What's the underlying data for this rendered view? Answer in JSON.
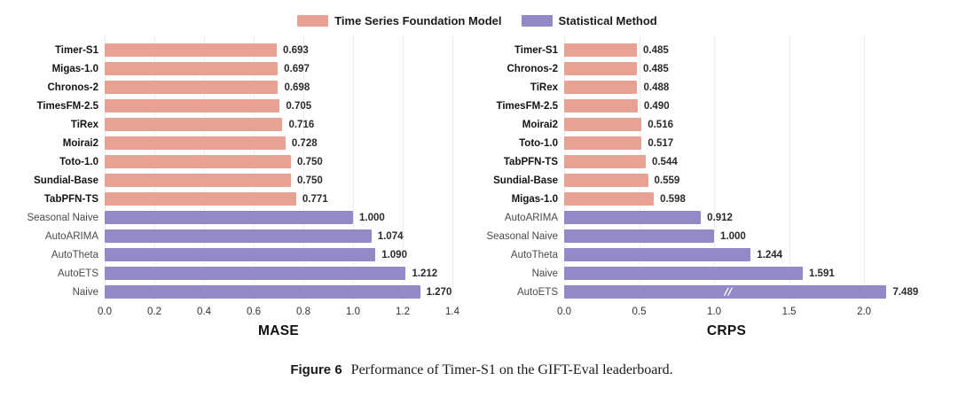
{
  "legend": [
    {
      "label": "Time Series Foundation Model",
      "series": "foundation",
      "color": "#E8A294"
    },
    {
      "label": "Statistical Method",
      "series": "statistical",
      "color": "#918AC6"
    }
  ],
  "colors": {
    "foundation": "#E8A294",
    "statistical": "#918AC6",
    "grid": "#EDEDED",
    "value_label": "#2B2B2B"
  },
  "caption": {
    "label": "Figure 6",
    "text": "Performance of Timer-S1 on the GIFT-Eval leaderboard."
  },
  "chart_data": [
    {
      "type": "bar",
      "orientation": "horizontal",
      "title": "",
      "xlabel": "MASE",
      "ylabel": "",
      "xlim": [
        0,
        1.4
      ],
      "grid": true,
      "legend_position": "top",
      "xticks": [
        {
          "value": 0.0,
          "label": "0.0"
        },
        {
          "value": 0.2,
          "label": "0.2"
        },
        {
          "value": 0.4,
          "label": "0.4"
        },
        {
          "value": 0.6,
          "label": "0.6"
        },
        {
          "value": 0.8,
          "label": "0.8"
        },
        {
          "value": 1.0,
          "label": "1.0"
        },
        {
          "value": 1.2,
          "label": "1.2"
        },
        {
          "value": 1.4,
          "label": "1.4"
        }
      ],
      "bars": [
        {
          "label": "Timer-S1",
          "value": 0.693,
          "value_label": "0.693",
          "series": "foundation"
        },
        {
          "label": "Migas-1.0",
          "value": 0.697,
          "value_label": "0.697",
          "series": "foundation"
        },
        {
          "label": "Chronos-2",
          "value": 0.698,
          "value_label": "0.698",
          "series": "foundation"
        },
        {
          "label": "TimesFM-2.5",
          "value": 0.705,
          "value_label": "0.705",
          "series": "foundation"
        },
        {
          "label": "TiRex",
          "value": 0.716,
          "value_label": "0.716",
          "series": "foundation"
        },
        {
          "label": "Moirai2",
          "value": 0.728,
          "value_label": "0.728",
          "series": "foundation"
        },
        {
          "label": "Toto-1.0",
          "value": 0.75,
          "value_label": "0.750",
          "series": "foundation"
        },
        {
          "label": "Sundial-Base",
          "value": 0.75,
          "value_label": "0.750",
          "series": "foundation"
        },
        {
          "label": "TabPFN-TS",
          "value": 0.771,
          "value_label": "0.771",
          "series": "foundation"
        },
        {
          "label": "Seasonal Naive",
          "value": 1.0,
          "value_label": "1.000",
          "series": "statistical"
        },
        {
          "label": "AutoARIMA",
          "value": 1.074,
          "value_label": "1.074",
          "series": "statistical"
        },
        {
          "label": "AutoTheta",
          "value": 1.09,
          "value_label": "1.090",
          "series": "statistical"
        },
        {
          "label": "AutoETS",
          "value": 1.212,
          "value_label": "1.212",
          "series": "statistical"
        },
        {
          "label": "Naive",
          "value": 1.27,
          "value_label": "1.270",
          "series": "statistical"
        }
      ]
    },
    {
      "type": "bar",
      "orientation": "horizontal",
      "title": "",
      "xlabel": "CRPS",
      "ylabel": "",
      "xlim": [
        0,
        2.165
      ],
      "grid": true,
      "legend_position": "top",
      "xticks": [
        {
          "value": 0.0,
          "label": "0.0"
        },
        {
          "value": 0.5,
          "label": "0.5"
        },
        {
          "value": 1.0,
          "label": "1.0"
        },
        {
          "value": 1.5,
          "label": "1.5"
        },
        {
          "value": 2.0,
          "label": "2.0"
        }
      ],
      "bars": [
        {
          "label": "Timer-S1",
          "value": 0.485,
          "value_label": "0.485",
          "series": "foundation"
        },
        {
          "label": "Chronos-2",
          "value": 0.485,
          "value_label": "0.485",
          "series": "foundation"
        },
        {
          "label": "TiRex",
          "value": 0.488,
          "value_label": "0.488",
          "series": "foundation"
        },
        {
          "label": "TimesFM-2.5",
          "value": 0.49,
          "value_label": "0.490",
          "series": "foundation"
        },
        {
          "label": "Moirai2",
          "value": 0.516,
          "value_label": "0.516",
          "series": "foundation"
        },
        {
          "label": "Toto-1.0",
          "value": 0.517,
          "value_label": "0.517",
          "series": "foundation"
        },
        {
          "label": "TabPFN-TS",
          "value": 0.544,
          "value_label": "0.544",
          "series": "foundation"
        },
        {
          "label": "Sundial-Base",
          "value": 0.559,
          "value_label": "0.559",
          "series": "foundation"
        },
        {
          "label": "Migas-1.0",
          "value": 0.598,
          "value_label": "0.598",
          "series": "foundation"
        },
        {
          "label": "AutoARIMA",
          "value": 0.912,
          "value_label": "0.912",
          "series": "statistical"
        },
        {
          "label": "Seasonal Naive",
          "value": 1.0,
          "value_label": "1.000",
          "series": "statistical"
        },
        {
          "label": "AutoTheta",
          "value": 1.244,
          "value_label": "1.244",
          "series": "statistical"
        },
        {
          "label": "Naive",
          "value": 1.591,
          "value_label": "1.591",
          "series": "statistical"
        },
        {
          "label": "AutoETS",
          "value": 7.489,
          "value_label": "7.489",
          "series": "statistical",
          "clipped": true,
          "bar_drawn_to": 2.15,
          "break_marker": "//",
          "break_at": 1.07
        }
      ]
    }
  ]
}
